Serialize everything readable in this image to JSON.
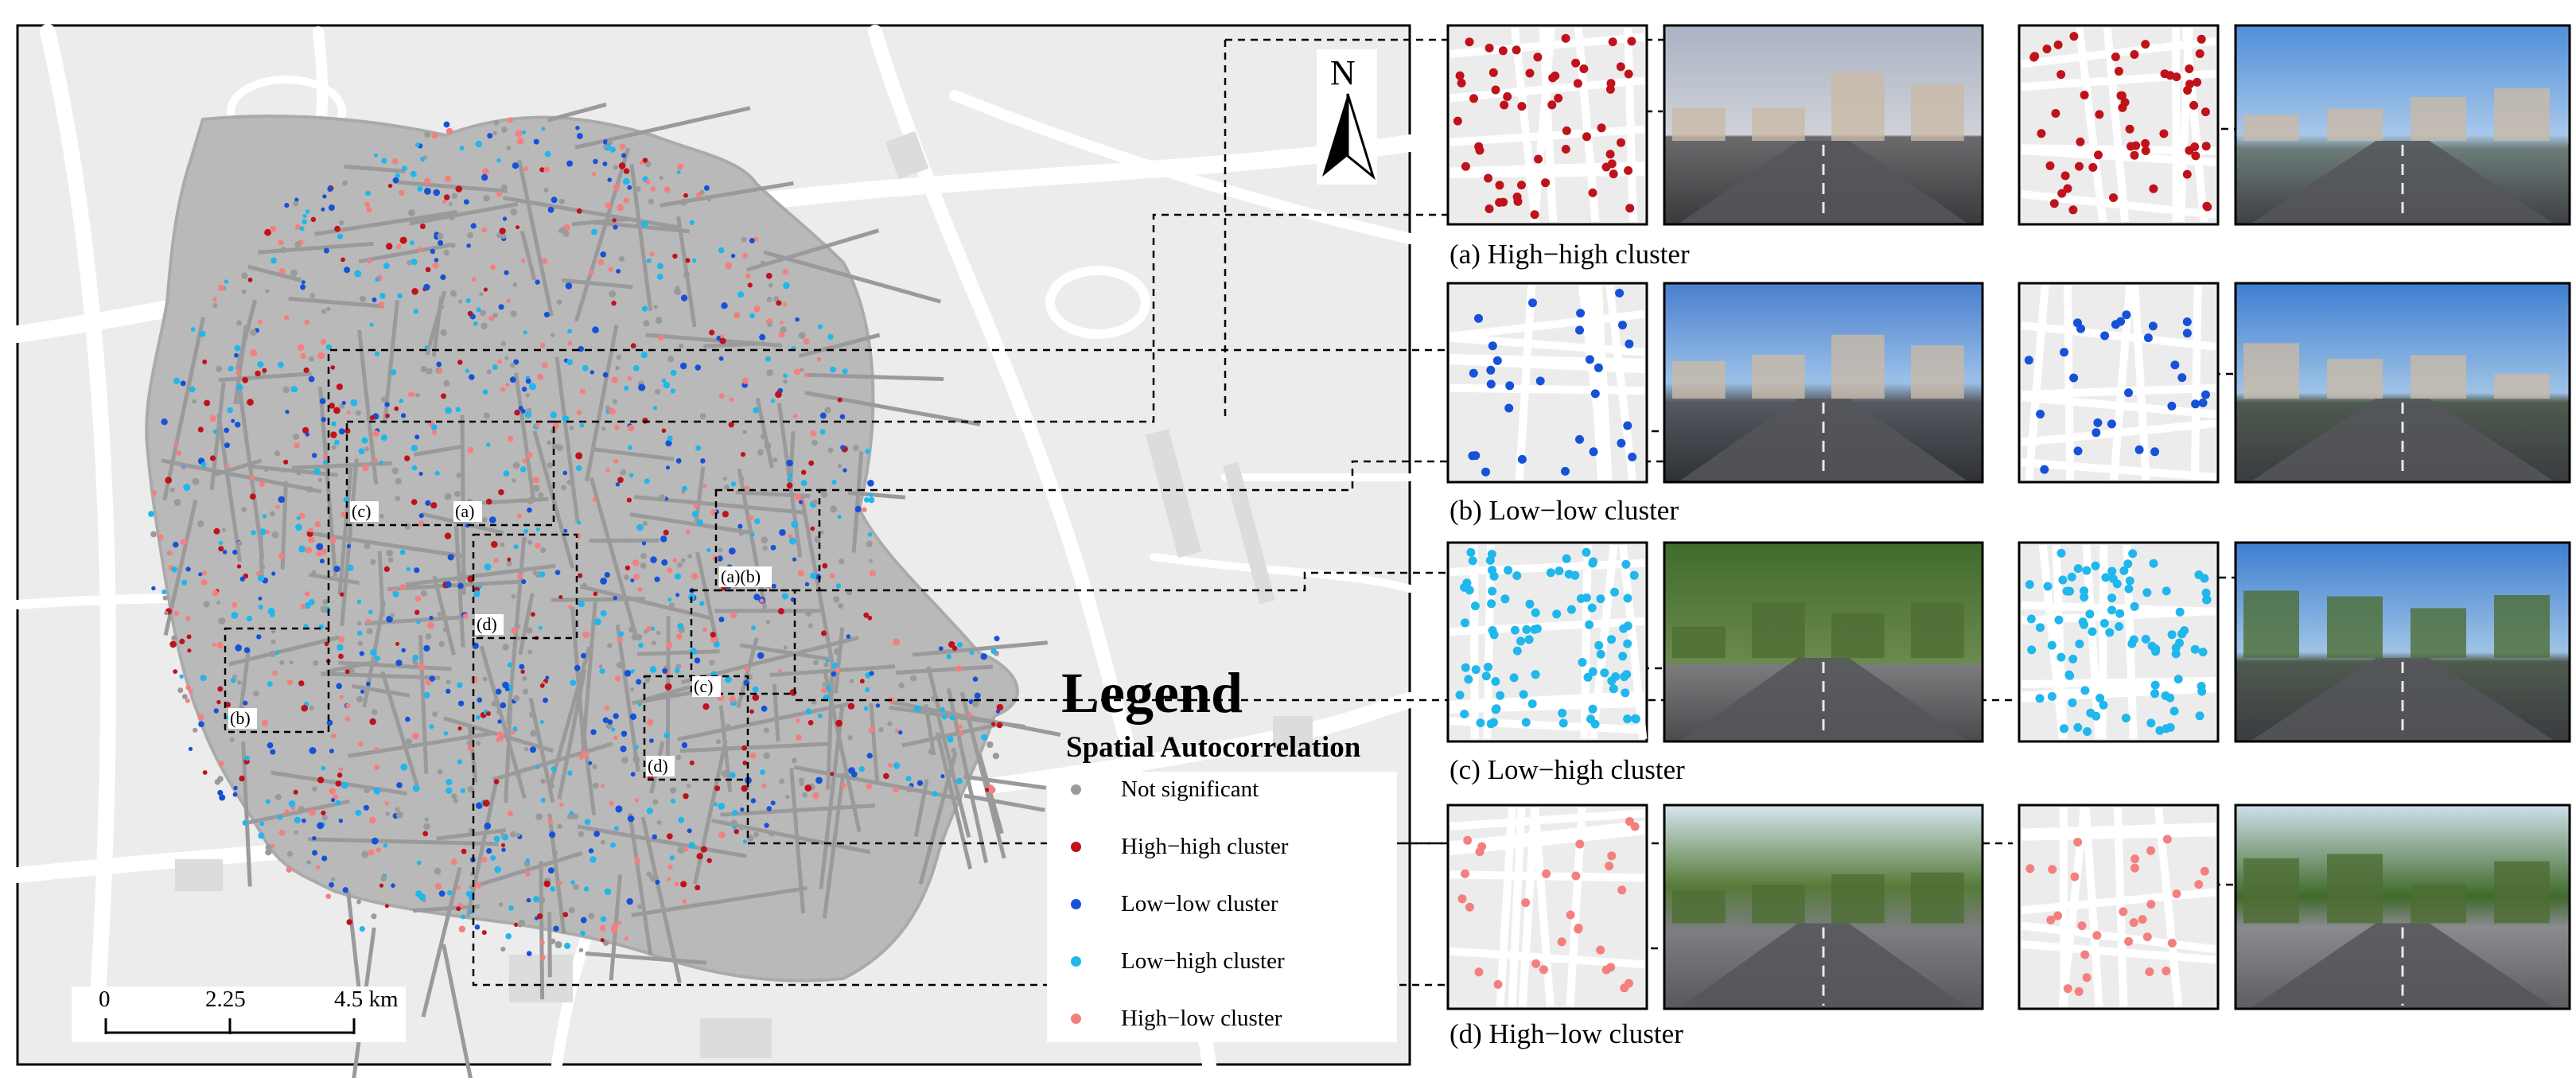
{
  "legend": {
    "title": "Legend",
    "subtitle": "Spatial Autocorrelation",
    "items": [
      {
        "label": "Not significant",
        "color": "#9a9a9a"
      },
      {
        "label": "High−high cluster",
        "color": "#c0121b"
      },
      {
        "label": "Low−low cluster",
        "color": "#1652d8"
      },
      {
        "label": "Low−high cluster",
        "color": "#1fb7ec"
      },
      {
        "label": "High−low cluster",
        "color": "#f47f7f"
      }
    ]
  },
  "scale_bar": {
    "ticks": [
      "0",
      "2.25",
      "4.5 km"
    ]
  },
  "north_arrow": {
    "label": "N"
  },
  "region_labels": [
    "(a)",
    "(c)",
    "(a)(b)",
    "(d)",
    "(b)",
    "(c)",
    "(d)"
  ],
  "panels": [
    {
      "caption": "(a) High−high cluster",
      "dot_color": "#c0121b"
    },
    {
      "caption": "(b) Low−low cluster",
      "dot_color": "#1652d8"
    },
    {
      "caption": "(c) Low−high cluster",
      "dot_color": "#1fb7ec"
    },
    {
      "caption": "(d) High−low cluster",
      "dot_color": "#f47f7f"
    }
  ],
  "colors": {
    "basemap": "#ececec",
    "roads": "#ffffff",
    "street_network": "#9a9a9a",
    "water": "#dcdcdc"
  }
}
